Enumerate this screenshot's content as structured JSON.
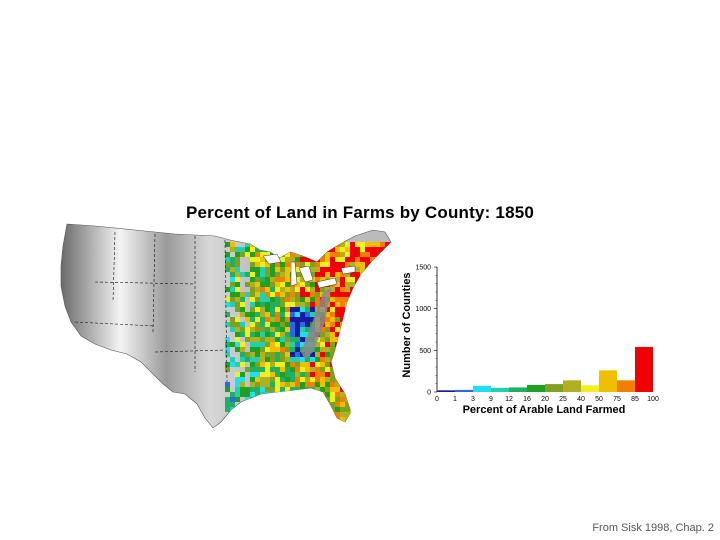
{
  "title": "Percent of Land in Farms by County: 1850",
  "credit": "From Sisk 1998, Chap. 2",
  "colors": {
    "bin_colors": [
      "#1a1aa0",
      "#2a6ae0",
      "#20e0f0",
      "#20d0b0",
      "#20b060",
      "#20a020",
      "#80a020",
      "#b0b020",
      "#f0f020",
      "#f0c000",
      "#f08000",
      "#f00000"
    ],
    "terrain_dark": "#3a3a3a",
    "terrain_light": "#e8e8e8"
  },
  "chart_data": {
    "type": "bar",
    "ylabel": "Number of Counties",
    "xlabel": "Percent of Arable Land Farmed",
    "x_tick_labels": [
      "0",
      "1",
      "3",
      "9",
      "12",
      "16",
      "20",
      "25",
      "40",
      "50",
      "75",
      "85",
      "100"
    ],
    "y_tick_labels": [
      "0",
      "500",
      "1000",
      "1500"
    ],
    "ylim": [
      0,
      1500
    ],
    "categories": [
      "0-1",
      "1-3",
      "3-9",
      "9-12",
      "12-16",
      "16-20",
      "20-25",
      "25-40",
      "40-50",
      "50-75",
      "75-85",
      "85-100"
    ],
    "values": [
      20,
      25,
      75,
      50,
      55,
      85,
      95,
      140,
      80,
      260,
      140,
      540
    ]
  }
}
